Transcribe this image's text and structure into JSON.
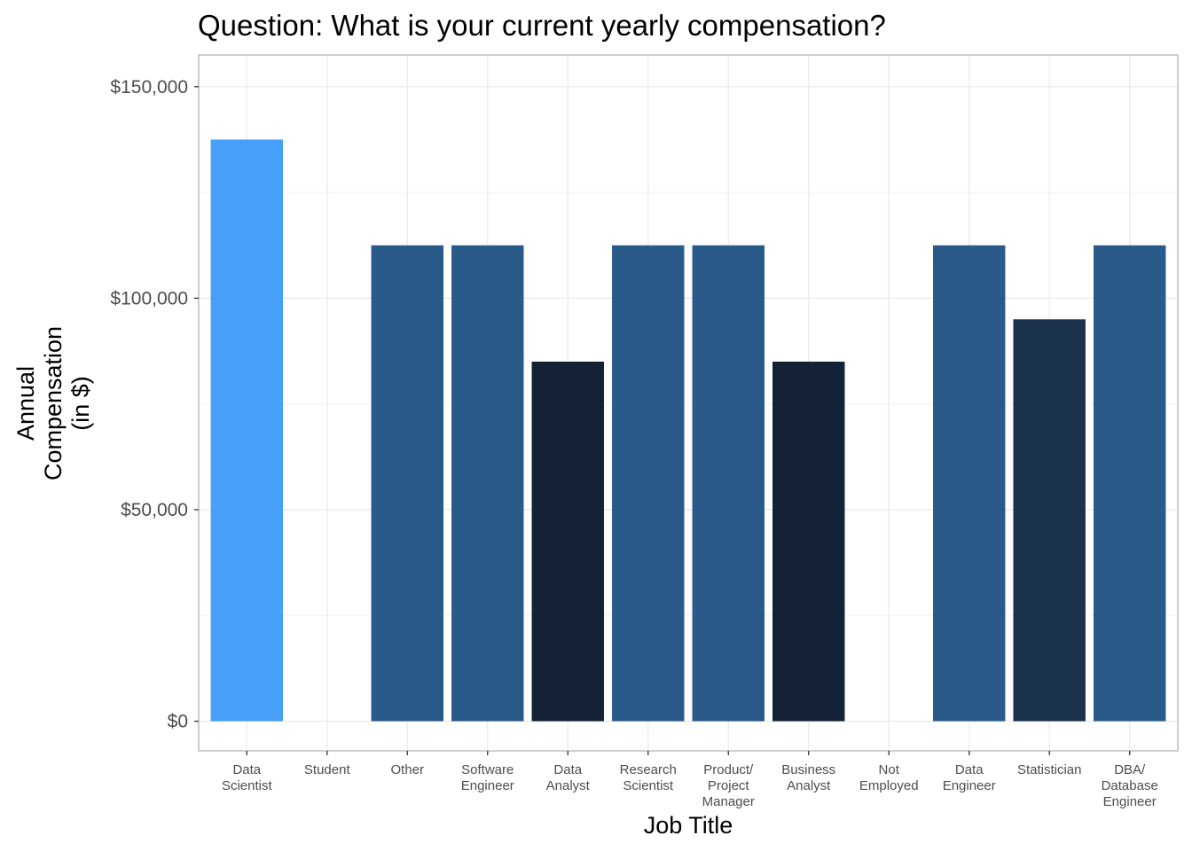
{
  "chart_data": {
    "type": "bar",
    "title": "Question: What is your current yearly compensation?",
    "xlabel": "Job Title",
    "ylabel": [
      "Annual",
      "Compensation",
      "(in $)"
    ],
    "categories": [
      [
        "Data",
        "Scientist"
      ],
      [
        "Student"
      ],
      [
        "Other"
      ],
      [
        "Software",
        "Engineer"
      ],
      [
        "Data",
        "Analyst"
      ],
      [
        "Research",
        "Scientist"
      ],
      [
        "Product/",
        "Project",
        "Manager"
      ],
      [
        "Business",
        "Analyst"
      ],
      [
        "Not",
        "Employed"
      ],
      [
        "Data",
        "Engineer"
      ],
      [
        "Statistician"
      ],
      [
        "DBA/",
        "Database",
        "Engineer"
      ]
    ],
    "values": [
      137500,
      0,
      112500,
      112500,
      85000,
      112500,
      112500,
      85000,
      0,
      112500,
      95000,
      112500
    ],
    "colors": [
      "#479ff8",
      "#479ff8",
      "#2a5a8a",
      "#2a5a8a",
      "#132235",
      "#2a5a8a",
      "#2a5a8a",
      "#132235",
      "#132235",
      "#2a5a8a",
      "#1b324f",
      "#2a5a8a"
    ],
    "ylim": [
      -7000,
      157500
    ],
    "yticks": [
      0,
      50000,
      100000,
      150000
    ],
    "ytick_labels": [
      "$0",
      "$50,000",
      "$100,000",
      "$150,000"
    ],
    "grid": true,
    "legend": "none"
  }
}
